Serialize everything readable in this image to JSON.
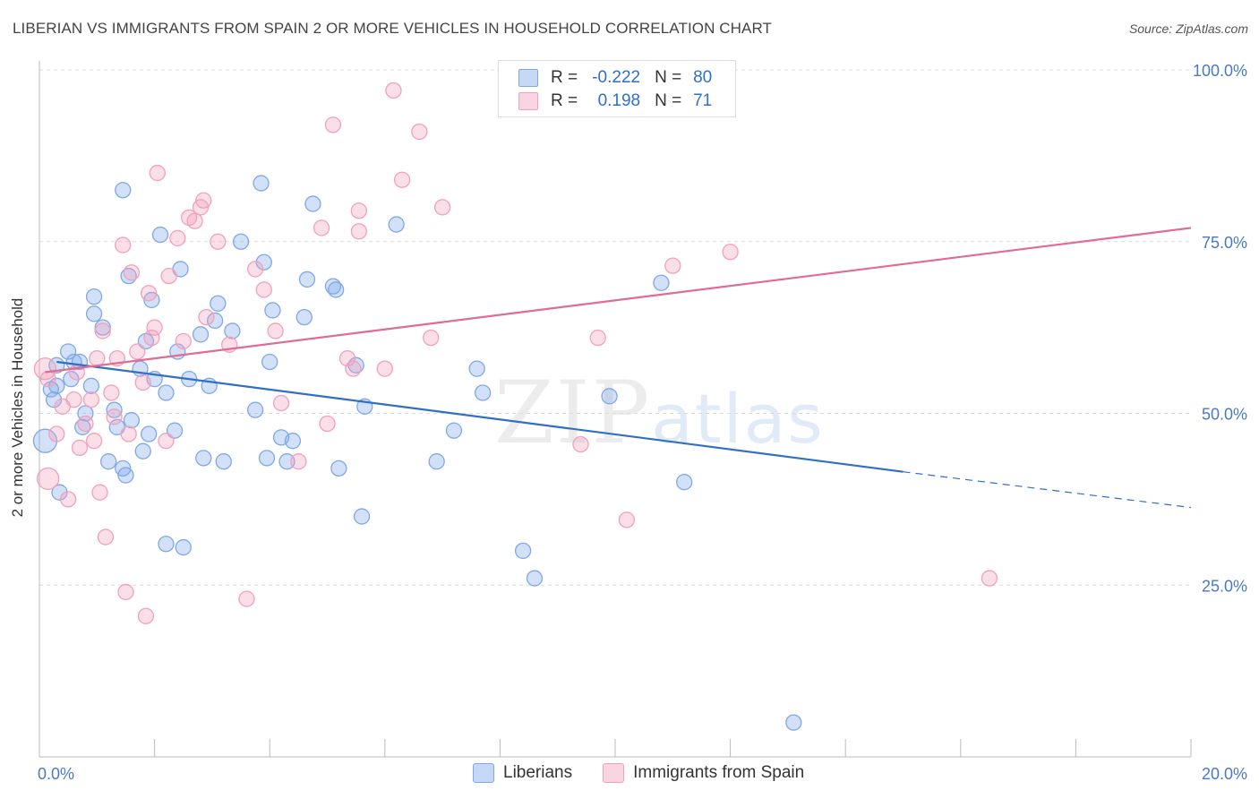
{
  "title": "LIBERIAN VS IMMIGRANTS FROM SPAIN 2 OR MORE VEHICLES IN HOUSEHOLD CORRELATION CHART",
  "source": "Source: ZipAtlas.com",
  "watermark": {
    "zip": "ZIP",
    "atlas": "atlas"
  },
  "legend": {
    "r_label": "R =",
    "n_label": "N =",
    "rows": [
      {
        "r": "-0.222",
        "n": "80",
        "color": "#7fa8e8"
      },
      {
        "r": "0.198",
        "n": "71",
        "color": "#f2a0bc"
      }
    ]
  },
  "chart_data": {
    "type": "scatter",
    "xlabel": "",
    "ylabel": "2 or more Vehicles in Household",
    "xlim": [
      0,
      20
    ],
    "ylim": [
      0,
      100
    ],
    "x_tick_labels": [
      "0.0%",
      "20.0%"
    ],
    "y_tick_labels": [
      "25.0%",
      "50.0%",
      "75.0%",
      "100.0%"
    ],
    "y_ticks": [
      25,
      50,
      75,
      100
    ],
    "legend_position": "bottom-center",
    "series": [
      {
        "name": "Liberians",
        "color": "#7fa8e8",
        "line_color": "#2f6fc6",
        "trend": {
          "x0": 0.3,
          "y0": 57.5,
          "x1": 15.0,
          "y1": 41.5,
          "dash_to_x": 20.0,
          "dash_to_y": 36.3
        },
        "points": [
          [
            0.1,
            46
          ],
          [
            0.2,
            53.5
          ],
          [
            0.25,
            52
          ],
          [
            0.3,
            57
          ],
          [
            0.35,
            38.5
          ],
          [
            0.3,
            54
          ],
          [
            0.5,
            59
          ],
          [
            0.55,
            55
          ],
          [
            0.6,
            57.5
          ],
          [
            0.7,
            57.5
          ],
          [
            0.75,
            48
          ],
          [
            0.8,
            50
          ],
          [
            0.9,
            54
          ],
          [
            0.95,
            64.5
          ],
          [
            0.95,
            67
          ],
          [
            1.1,
            62.5
          ],
          [
            1.3,
            50.5
          ],
          [
            1.35,
            48
          ],
          [
            1.2,
            43
          ],
          [
            1.45,
            42
          ],
          [
            1.5,
            41
          ],
          [
            1.45,
            82.5
          ],
          [
            1.55,
            70
          ],
          [
            1.6,
            49
          ],
          [
            1.75,
            56.5
          ],
          [
            1.8,
            44.5
          ],
          [
            1.85,
            60.5
          ],
          [
            1.9,
            47
          ],
          [
            1.95,
            66.5
          ],
          [
            2.0,
            55
          ],
          [
            2.1,
            76
          ],
          [
            2.2,
            53
          ],
          [
            2.2,
            31
          ],
          [
            2.35,
            47.5
          ],
          [
            2.4,
            59
          ],
          [
            2.45,
            71
          ],
          [
            2.5,
            30.5
          ],
          [
            2.6,
            55
          ],
          [
            2.8,
            61.5
          ],
          [
            2.85,
            43.5
          ],
          [
            2.95,
            54
          ],
          [
            3.05,
            63.5
          ],
          [
            3.1,
            66
          ],
          [
            3.2,
            43
          ],
          [
            3.35,
            62
          ],
          [
            3.5,
            75
          ],
          [
            3.75,
            50.5
          ],
          [
            3.85,
            83.5
          ],
          [
            3.9,
            72
          ],
          [
            3.95,
            43.5
          ],
          [
            4.0,
            57.5
          ],
          [
            4.05,
            65
          ],
          [
            4.2,
            46.5
          ],
          [
            4.3,
            43
          ],
          [
            4.4,
            46
          ],
          [
            4.6,
            64
          ],
          [
            4.65,
            69.5
          ],
          [
            4.75,
            80.5
          ],
          [
            5.1,
            68.5
          ],
          [
            5.15,
            68
          ],
          [
            5.2,
            42
          ],
          [
            5.5,
            57
          ],
          [
            5.6,
            35
          ],
          [
            5.65,
            51
          ],
          [
            6.2,
            77.5
          ],
          [
            6.9,
            43
          ],
          [
            7.2,
            47.5
          ],
          [
            7.6,
            56.5
          ],
          [
            7.7,
            53
          ],
          [
            8.4,
            30
          ],
          [
            8.6,
            26
          ],
          [
            9.9,
            52.5
          ],
          [
            10.8,
            69
          ],
          [
            11.2,
            40
          ],
          [
            13.1,
            5
          ]
        ]
      },
      {
        "name": "Immigrants from Spain",
        "color": "#f2a0bc",
        "line_color": "#e06b94",
        "trend": {
          "x0": 0.1,
          "y0": 56,
          "x1": 20.0,
          "y1": 77
        },
        "points": [
          [
            0.1,
            56.5
          ],
          [
            0.15,
            55
          ],
          [
            0.15,
            40.5
          ],
          [
            0.3,
            47
          ],
          [
            0.4,
            51
          ],
          [
            0.5,
            37.5
          ],
          [
            0.6,
            52
          ],
          [
            0.65,
            56
          ],
          [
            0.7,
            45
          ],
          [
            0.8,
            48.5
          ],
          [
            0.9,
            52
          ],
          [
            0.95,
            46
          ],
          [
            1.0,
            58
          ],
          [
            1.05,
            38.5
          ],
          [
            1.1,
            62
          ],
          [
            1.15,
            32
          ],
          [
            1.25,
            53
          ],
          [
            1.3,
            49.5
          ],
          [
            1.35,
            58
          ],
          [
            1.45,
            74.5
          ],
          [
            1.5,
            24
          ],
          [
            1.55,
            47
          ],
          [
            1.6,
            70.5
          ],
          [
            1.7,
            59
          ],
          [
            1.8,
            54.5
          ],
          [
            1.85,
            20.5
          ],
          [
            1.9,
            67.5
          ],
          [
            1.95,
            61
          ],
          [
            2.0,
            62.5
          ],
          [
            2.05,
            85
          ],
          [
            2.2,
            46
          ],
          [
            2.25,
            70
          ],
          [
            2.4,
            75.5
          ],
          [
            2.5,
            60.5
          ],
          [
            2.6,
            78.5
          ],
          [
            2.7,
            78
          ],
          [
            2.8,
            80
          ],
          [
            2.85,
            81
          ],
          [
            2.9,
            64
          ],
          [
            3.1,
            75
          ],
          [
            3.3,
            60
          ],
          [
            3.6,
            23
          ],
          [
            3.75,
            71
          ],
          [
            3.9,
            68
          ],
          [
            4.1,
            62
          ],
          [
            4.2,
            51.5
          ],
          [
            4.5,
            43
          ],
          [
            4.9,
            77
          ],
          [
            5.0,
            48.5
          ],
          [
            5.1,
            92
          ],
          [
            5.35,
            58
          ],
          [
            5.45,
            56.5
          ],
          [
            5.55,
            79.5
          ],
          [
            5.55,
            76.5
          ],
          [
            6.0,
            56.5
          ],
          [
            6.15,
            97
          ],
          [
            6.3,
            84
          ],
          [
            6.6,
            91
          ],
          [
            6.8,
            61
          ],
          [
            7.0,
            80
          ],
          [
            8.1,
            100
          ],
          [
            9.4,
            45.5
          ],
          [
            9.7,
            61
          ],
          [
            10.2,
            34.5
          ],
          [
            11.0,
            71.5
          ],
          [
            12.0,
            73.5
          ],
          [
            16.5,
            26
          ]
        ]
      }
    ]
  }
}
